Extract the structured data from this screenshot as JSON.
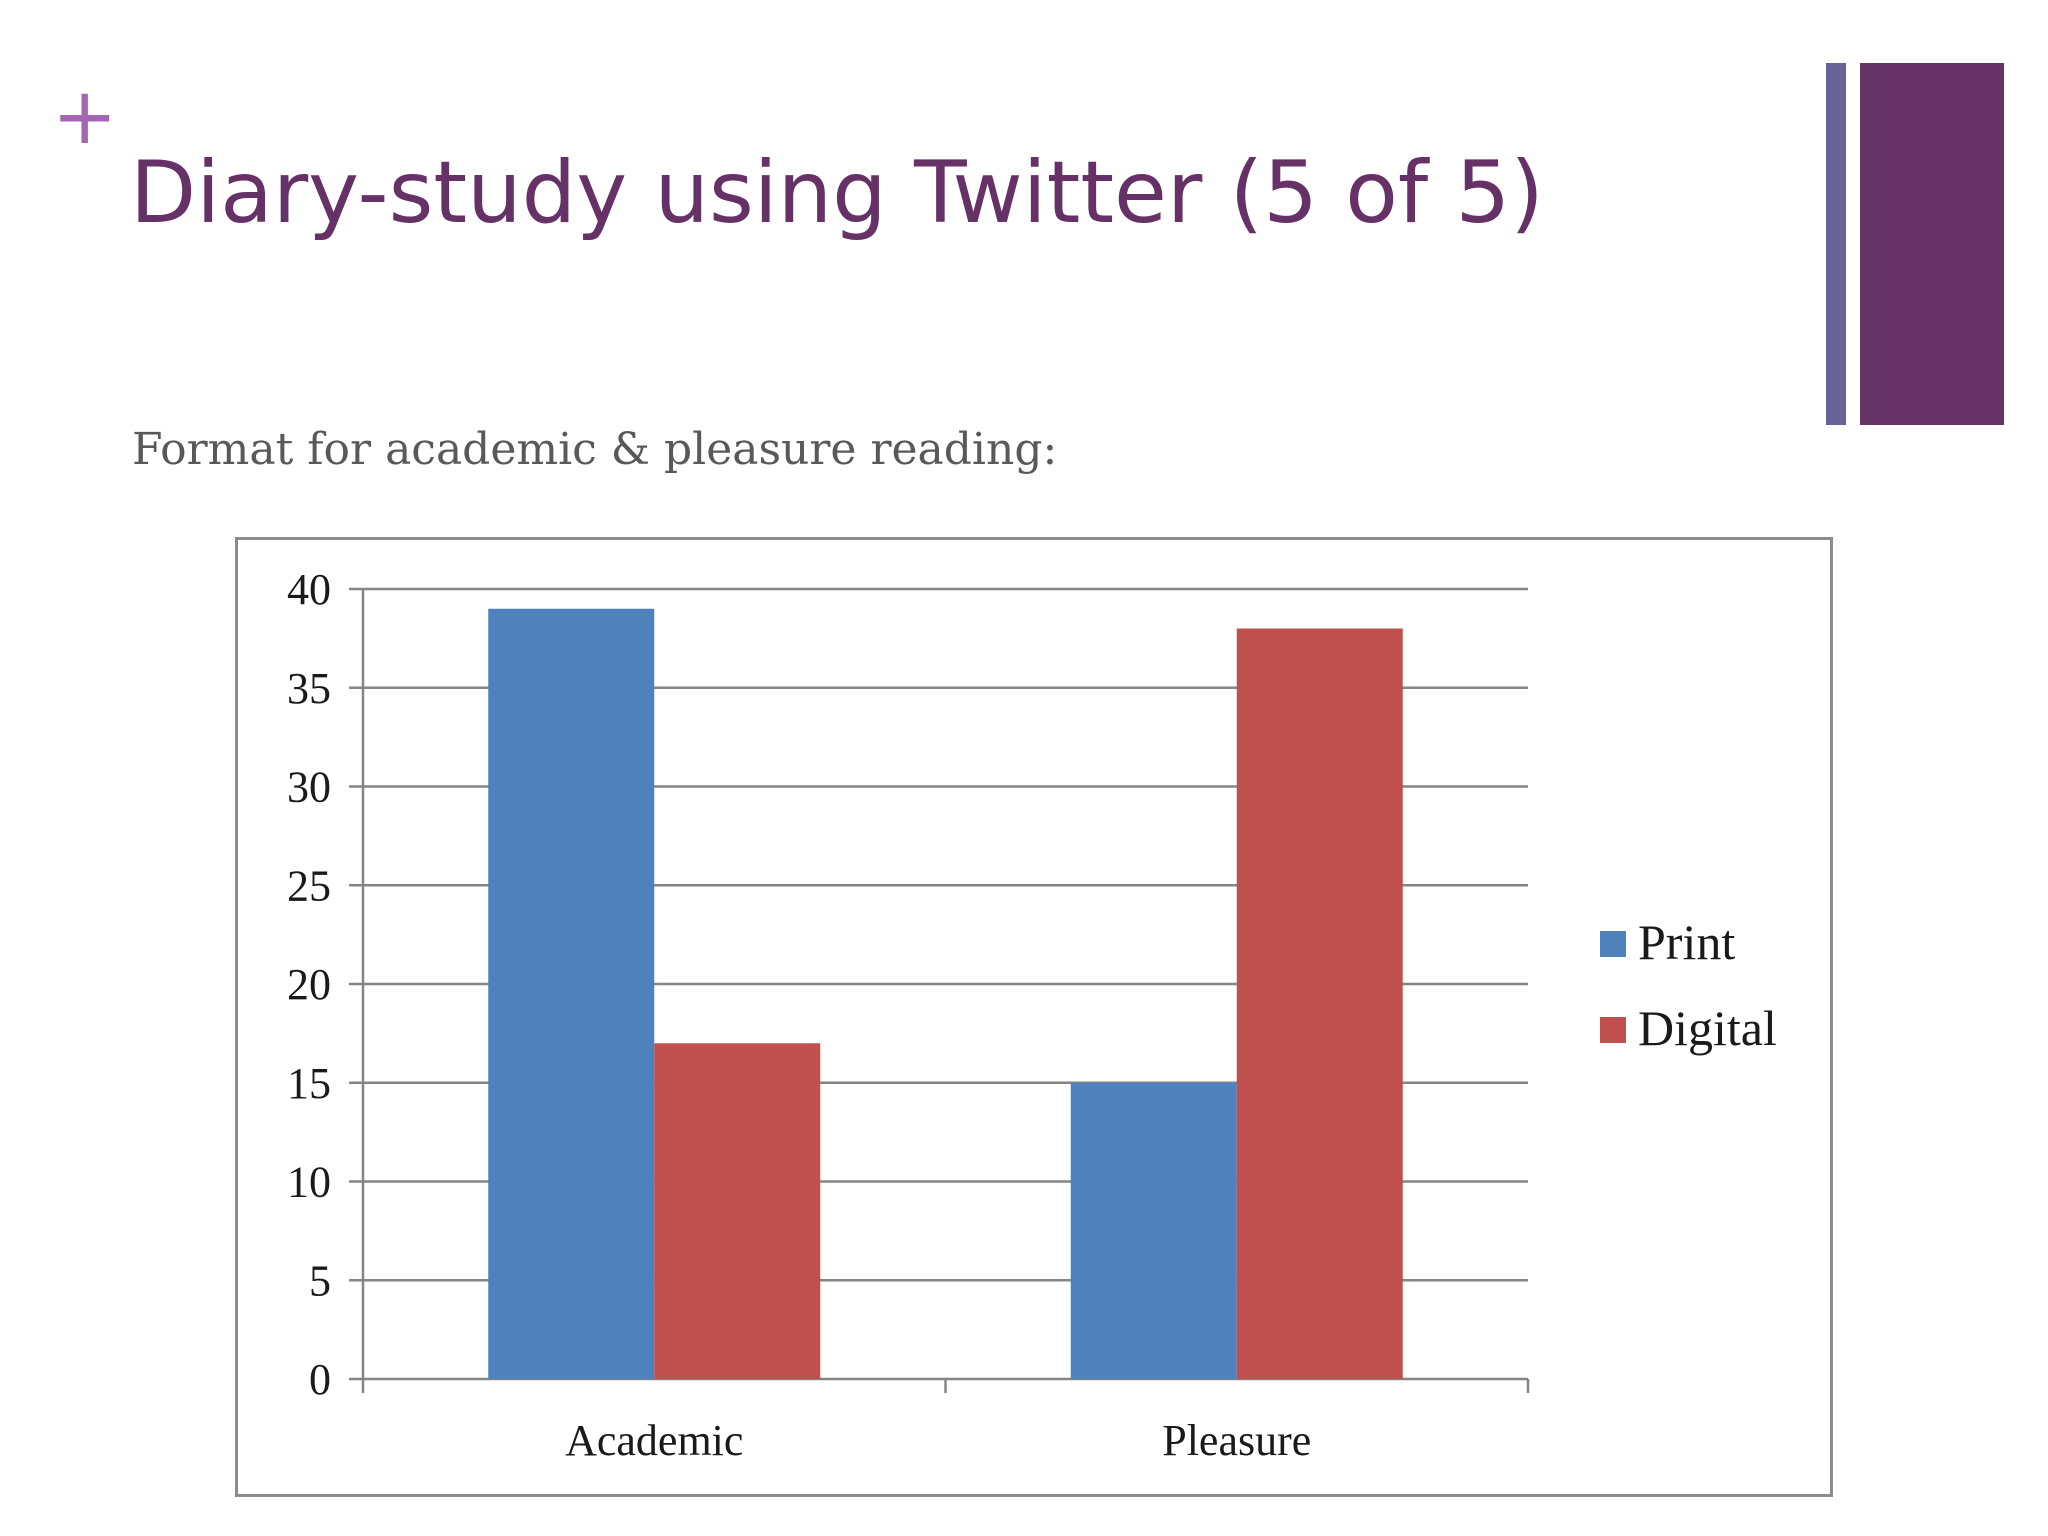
{
  "slide": {
    "plus": "+",
    "title": "Diary-study using Twitter (5 of 5)",
    "subtitle": "Format for academic & pleasure reading:"
  },
  "colors": {
    "title": "#663166",
    "plus": "#a565b4",
    "accent_thin": "#676396",
    "accent_wide": "#673366"
  },
  "chart_data": {
    "type": "bar",
    "categories": [
      "Academic",
      "Pleasure"
    ],
    "series": [
      {
        "name": "Print",
        "values": [
          39,
          15
        ],
        "color": "#4f81bd"
      },
      {
        "name": "Digital",
        "values": [
          17,
          38
        ],
        "color": "#c0504d"
      }
    ],
    "ylim": [
      0,
      40
    ],
    "yticks": [
      0,
      5,
      10,
      15,
      20,
      25,
      30,
      35,
      40
    ],
    "grid": true,
    "legend": "right"
  }
}
